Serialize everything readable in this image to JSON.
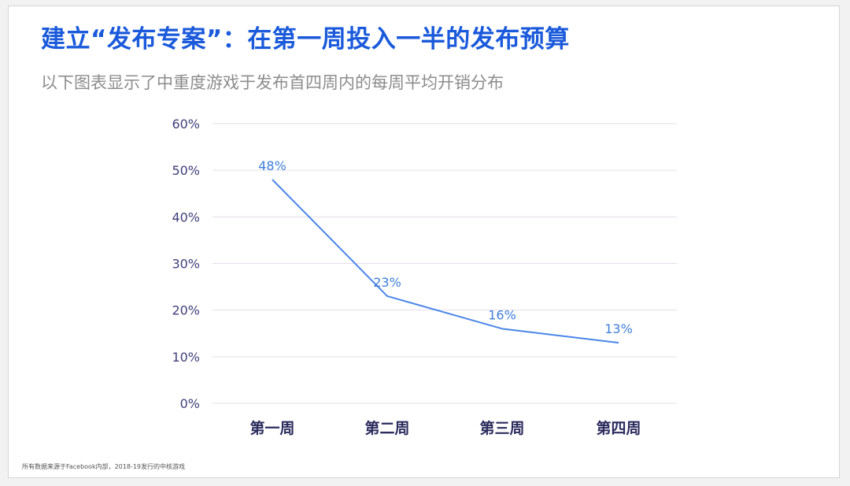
{
  "title": "建立“发布专案”：在第一周投入一半的发布预算",
  "subtitle": "以下图表显示了中重度游戏于发布首四周内的每周平均开销分布",
  "footnote": "所有数据来源于Facebook内部，2018-19发行的中核游戏",
  "colors": {
    "title": "#1a5adb",
    "line": "#4a86e8",
    "grid": "#e4ddea",
    "data_label": "#3f7fd9"
  },
  "chart_data": {
    "type": "line",
    "title": "",
    "xlabel": "",
    "ylabel": "",
    "categories": [
      "第一周",
      "第二周",
      "第三周",
      "第四周"
    ],
    "series": [
      {
        "values": [
          48,
          23,
          16,
          13
        ],
        "labels": [
          "48%",
          "23%",
          "16%",
          "13%"
        ]
      }
    ],
    "ylim": [
      0,
      60
    ],
    "yticks": [
      0,
      10,
      20,
      30,
      40,
      50,
      60
    ],
    "ytick_labels": [
      "0%",
      "10%",
      "20%",
      "30%",
      "40%",
      "50%",
      "60%"
    ],
    "grid": true,
    "legend": "none"
  }
}
